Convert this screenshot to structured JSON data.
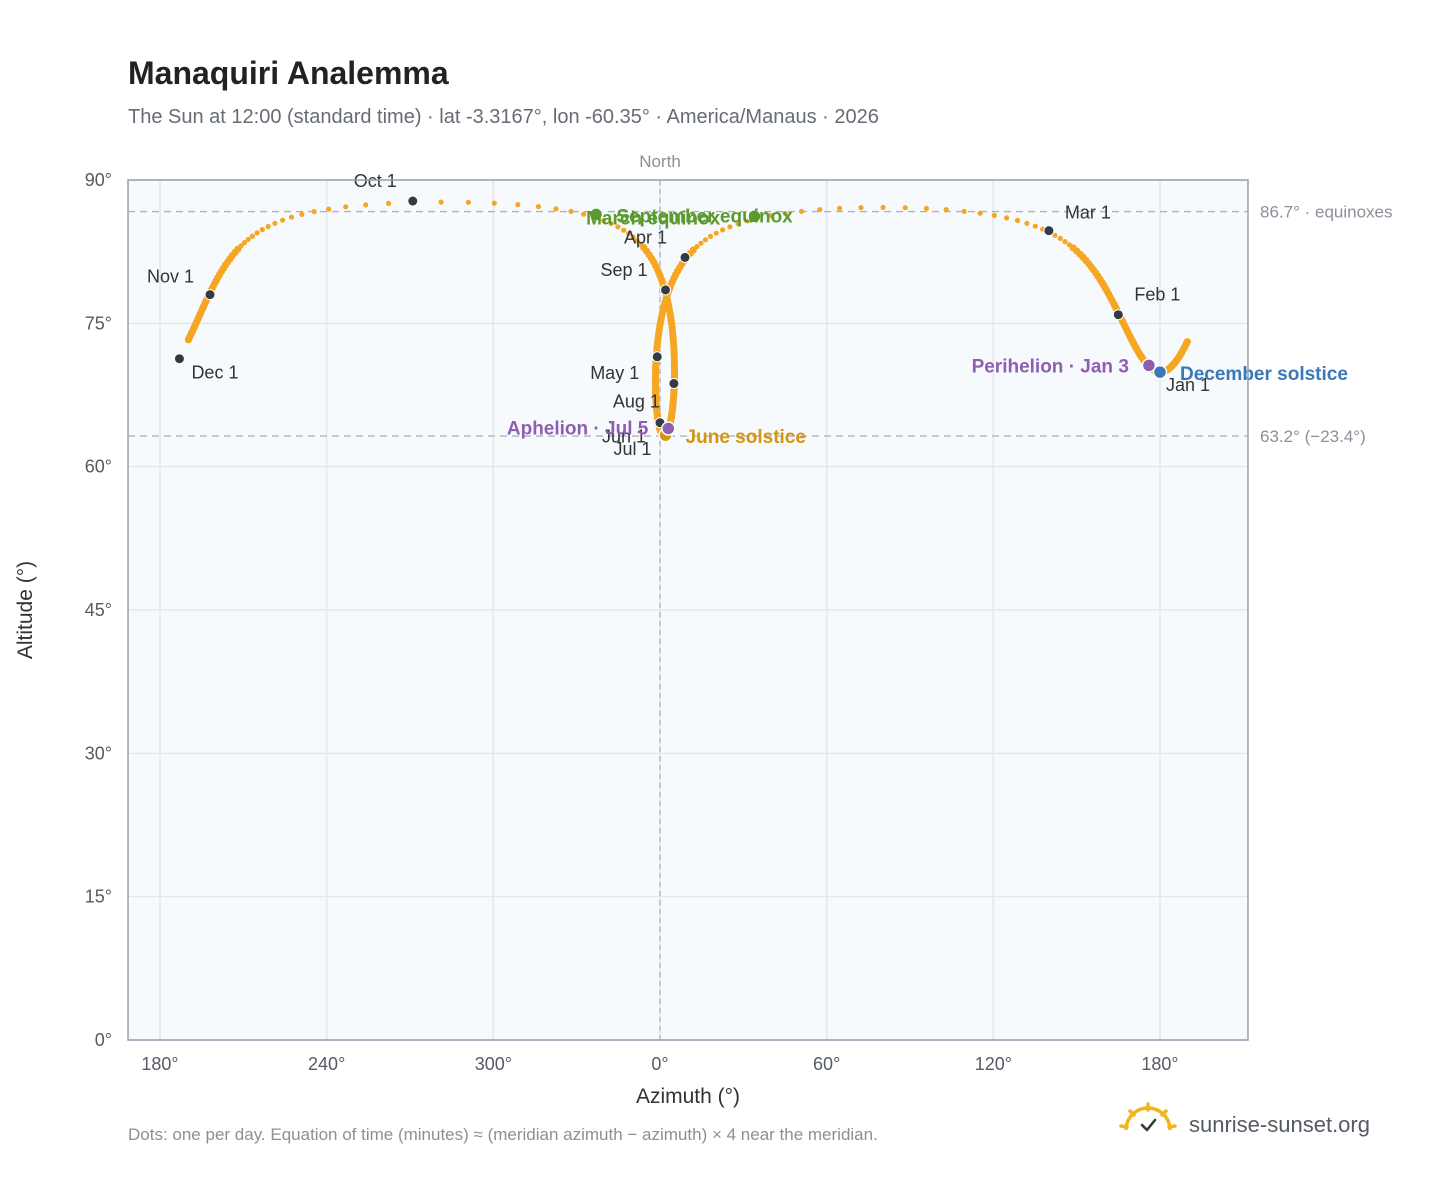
{
  "title": "Manaquiri Analemma",
  "subtitle": "The Sun at 12:00 (standard time) · lat -3.3167°, lon -60.35° · America/Manaus · 2026",
  "footnote": "Dots: one per day. Equation of time (minutes) ≈ (meridian azimuth − azimuth) × 4 near the meridian.",
  "brand": "sunrise-sunset.org",
  "colors": {
    "curve": "#f5a623",
    "month_dot": "#333a45",
    "equinox": "#5a9a2e",
    "june_solstice": "#d4960f",
    "december_solstice": "#3a78b8",
    "apsis": "#8e5fb0",
    "plot_bg": "#f7fafd",
    "grid": "#e3e8ee",
    "frame": "#97a0ad"
  },
  "chart_data": {
    "type": "scatter",
    "xlabel": "Azimuth (°)",
    "ylabel": "Altitude (°)",
    "x_ticks": [
      "180°",
      "240°",
      "300°",
      "0°",
      "60°",
      "120°",
      "180°"
    ],
    "y_ticks": [
      "0°",
      "15°",
      "30°",
      "45°",
      "60°",
      "75°",
      "90°"
    ],
    "ylim": [
      0,
      90
    ],
    "north_label": "North",
    "reference_lines": [
      {
        "altitude": 86.7,
        "label": "86.7° · equinoxes"
      },
      {
        "altitude": 63.2,
        "label": "63.2° (−23.4°)"
      }
    ],
    "month_markers": [
      {
        "label": "Jan 1",
        "az": 180,
        "alt": 70
      },
      {
        "label": "Feb 1",
        "az": 165,
        "alt": 75.9
      },
      {
        "label": "Mar 1",
        "az": 140,
        "alt": 84.7
      },
      {
        "label": "Apr 1",
        "az": 9,
        "alt": 81.9
      },
      {
        "label": "May 1",
        "az": 359,
        "alt": 71.5
      },
      {
        "label": "Jun 1",
        "az": 0,
        "alt": 64.6
      },
      {
        "label": "Jul 1",
        "az": 2,
        "alt": 63.3
      },
      {
        "label": "Aug 1",
        "az": 5,
        "alt": 68.7
      },
      {
        "label": "Sep 1",
        "az": 2,
        "alt": 78.5
      },
      {
        "label": "Oct 1",
        "az": 271,
        "alt": 87.8
      },
      {
        "label": "Nov 1",
        "az": 198,
        "alt": 78
      },
      {
        "label": "Dec 1",
        "az": 187,
        "alt": 71.3
      }
    ],
    "events": [
      {
        "label": "March equinox",
        "az": 337,
        "alt": 86.4,
        "color": "#5a9a2e"
      },
      {
        "label": "September equinox",
        "az": 34,
        "alt": 86.2,
        "color": "#5a9a2e"
      },
      {
        "label": "June solstice",
        "az": 2,
        "alt": 63.3,
        "color": "#d4960f"
      },
      {
        "label": "December solstice",
        "az": 180,
        "alt": 69.9,
        "color": "#3a78b8"
      },
      {
        "label": "Aphelion · Jul 5",
        "az": 3,
        "alt": 64,
        "color": "#8e5fb0"
      },
      {
        "label": "Perihelion · Jan 3",
        "az": 176,
        "alt": 70.6,
        "color": "#8e5fb0"
      }
    ]
  }
}
